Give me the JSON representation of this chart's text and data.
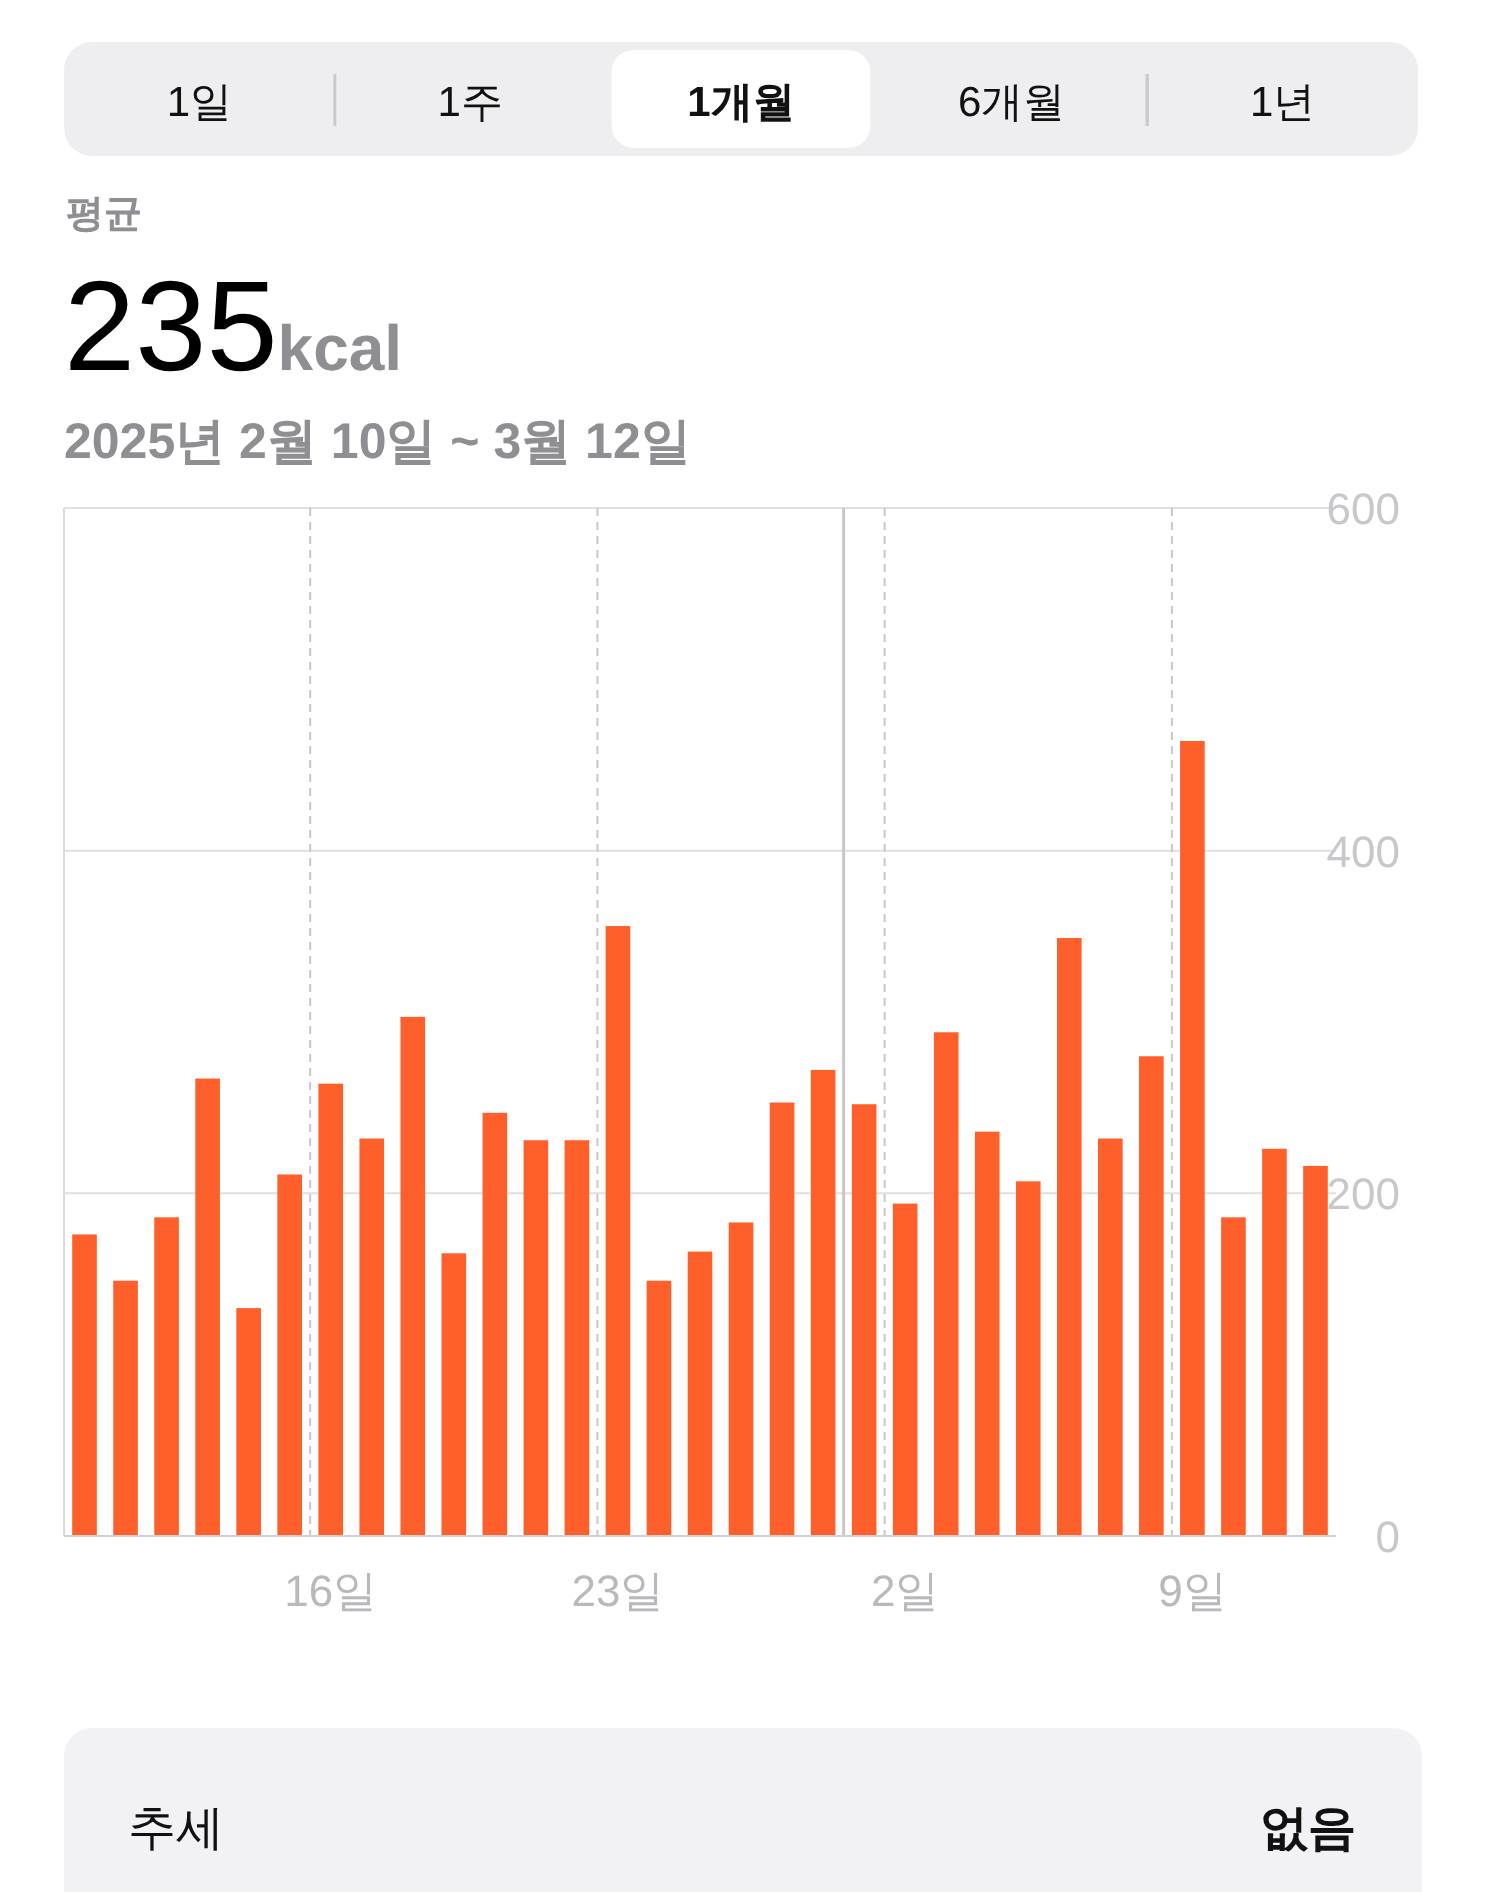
{
  "chart_data": {
    "type": "bar",
    "title": "235kcal",
    "subtitle": "2025년 2월 10일 ~ 3월 12일",
    "annotations": [
      "1일",
      "1주",
      "1개월",
      "6개월",
      "1년",
      "평균",
      "추세",
      "없음"
    ],
    "categories": [
      null,
      null,
      null,
      null,
      null,
      null,
      "16일",
      null,
      null,
      null,
      null,
      null,
      null,
      "23일",
      null,
      null,
      null,
      null,
      null,
      null,
      "2일",
      null,
      null,
      null,
      null,
      null,
      null,
      "9일",
      null,
      null,
      null
    ],
    "values": [
      176,
      149,
      186,
      267,
      133,
      211,
      264,
      232,
      303,
      165,
      247,
      231,
      231,
      356,
      149,
      166,
      183,
      253,
      272,
      252,
      194,
      294,
      236,
      207,
      349,
      232,
      280,
      464,
      186,
      226,
      216
    ],
    "color": "#ff5f2a",
    "ylim": [
      0,
      600
    ],
    "yticks": [
      0,
      200,
      400,
      600
    ],
    "grid": true
  }
}
